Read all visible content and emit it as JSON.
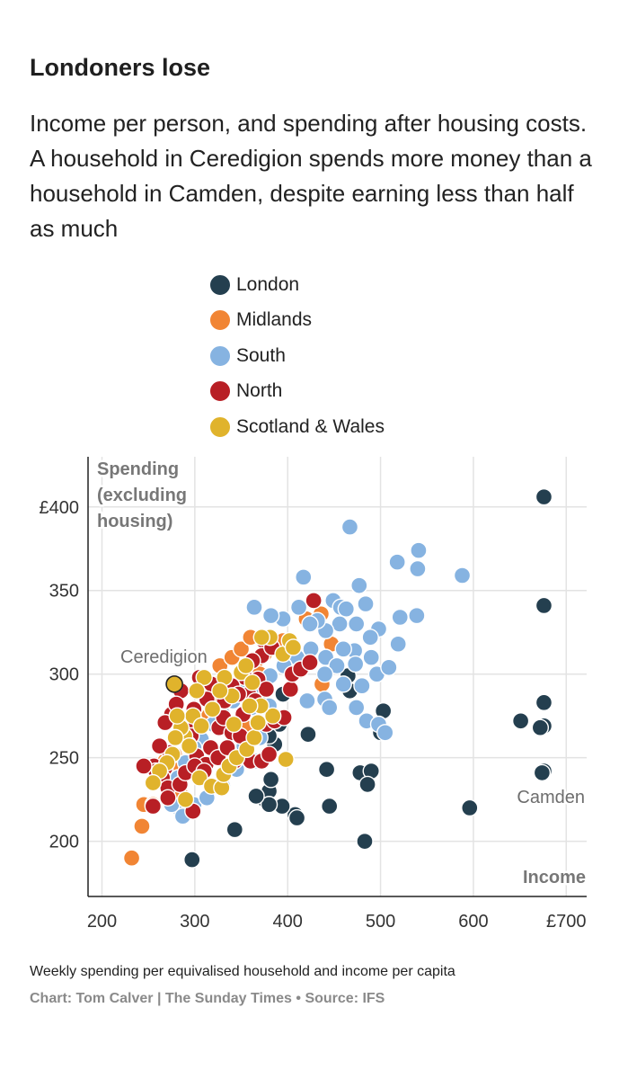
{
  "chart_data": {
    "type": "scatter",
    "title": "Londoners lose",
    "subtitle": "Income per person, and spending after housing costs. A household in Ceredigion spends more money than a household in Camden, despite earning less than half as much",
    "xlabel": "Income",
    "ylabel": "Spending (excluding housing)",
    "ylabel_lines": [
      "Spending",
      "(excluding",
      "housing)"
    ],
    "xlim": [
      185,
      722
    ],
    "ylim": [
      167,
      430
    ],
    "x_ticks": [
      200,
      300,
      400,
      500,
      600,
      700
    ],
    "x_tick_labels": [
      "200",
      "300",
      "400",
      "500",
      "600",
      "£700"
    ],
    "y_ticks": [
      200,
      250,
      300,
      350,
      400
    ],
    "y_tick_labels": [
      "200",
      "250",
      "300",
      "350",
      "£400"
    ],
    "grid": true,
    "legend_position": "top",
    "annotations": [
      {
        "label": "Ceredigion",
        "x": 278,
        "y": 294
      },
      {
        "label": "Camden",
        "x": 676,
        "y": 242
      }
    ],
    "series": [
      {
        "name": "London",
        "color": "#243f4f",
        "points": [
          [
            676,
            406
          ],
          [
            676,
            341
          ],
          [
            676,
            283
          ],
          [
            676,
            269
          ],
          [
            672,
            268
          ],
          [
            651,
            272
          ],
          [
            676,
            242
          ],
          [
            674,
            241
          ],
          [
            596,
            220
          ],
          [
            478,
            241
          ],
          [
            490,
            242
          ],
          [
            486,
            234
          ],
          [
            483,
            200
          ],
          [
            500,
            265
          ],
          [
            503,
            278
          ],
          [
            465,
            299
          ],
          [
            467,
            290
          ],
          [
            395,
            288
          ],
          [
            391,
            270
          ],
          [
            386,
            258
          ],
          [
            380,
            263
          ],
          [
            360,
            268
          ],
          [
            366,
            270
          ],
          [
            383,
            276
          ],
          [
            422,
            264
          ],
          [
            442,
            243
          ],
          [
            445,
            221
          ],
          [
            408,
            216
          ],
          [
            410,
            214
          ],
          [
            394,
            221
          ],
          [
            375,
            225
          ],
          [
            380,
            230
          ],
          [
            382,
            237
          ],
          [
            380,
            222
          ],
          [
            366,
            227
          ],
          [
            343,
            207
          ],
          [
            297,
            189
          ]
        ]
      },
      {
        "name": "Midlands",
        "color": "#f18534",
        "points": [
          [
            232,
            190
          ],
          [
            243,
            209
          ],
          [
            245,
            222
          ],
          [
            255,
            222
          ],
          [
            262,
            238
          ],
          [
            273,
            242
          ],
          [
            280,
            245
          ],
          [
            268,
            248
          ],
          [
            278,
            252
          ],
          [
            289,
            263
          ],
          [
            300,
            268
          ],
          [
            315,
            275
          ],
          [
            325,
            282
          ],
          [
            335,
            288
          ],
          [
            306,
            298
          ],
          [
            318,
            292
          ],
          [
            329,
            296
          ],
          [
            327,
            305
          ],
          [
            340,
            310
          ],
          [
            350,
            315
          ],
          [
            360,
            322
          ],
          [
            365,
            307
          ],
          [
            375,
            312
          ],
          [
            395,
            320
          ],
          [
            405,
            310
          ],
          [
            412,
            302
          ],
          [
            420,
            333
          ],
          [
            436,
            336
          ],
          [
            447,
            318
          ],
          [
            437,
            294
          ],
          [
            370,
            300
          ],
          [
            398,
            249
          ],
          [
            355,
            268
          ],
          [
            285,
            228
          ],
          [
            270,
            232
          ],
          [
            338,
            244
          ]
        ]
      },
      {
        "name": "South",
        "color": "#86b3e1",
        "points": [
          [
            467,
            388
          ],
          [
            541,
            374
          ],
          [
            540,
            363
          ],
          [
            518,
            367
          ],
          [
            588,
            359
          ],
          [
            417,
            358
          ],
          [
            477,
            353
          ],
          [
            449,
            344
          ],
          [
            457,
            340
          ],
          [
            463,
            339
          ],
          [
            484,
            342
          ],
          [
            498,
            327
          ],
          [
            521,
            334
          ],
          [
            539,
            335
          ],
          [
            519,
            318
          ],
          [
            489,
            322
          ],
          [
            472,
            314
          ],
          [
            474,
            330
          ],
          [
            456,
            330
          ],
          [
            441,
            326
          ],
          [
            432,
            332
          ],
          [
            424,
            330
          ],
          [
            412,
            340
          ],
          [
            395,
            333
          ],
          [
            382,
            335
          ],
          [
            364,
            340
          ],
          [
            410,
            310
          ],
          [
            425,
            315
          ],
          [
            441,
            310
          ],
          [
            453,
            305
          ],
          [
            460,
            315
          ],
          [
            473,
            306
          ],
          [
            490,
            310
          ],
          [
            496,
            300
          ],
          [
            509,
            304
          ],
          [
            480,
            293
          ],
          [
            474,
            280
          ],
          [
            485,
            272
          ],
          [
            498,
            270
          ],
          [
            505,
            265
          ],
          [
            460,
            294
          ],
          [
            440,
            285
          ],
          [
            440,
            300
          ],
          [
            445,
            280
          ],
          [
            421,
            284
          ],
          [
            404,
            300
          ],
          [
            396,
            305
          ],
          [
            381,
            299
          ],
          [
            370,
            288
          ],
          [
            361,
            280
          ],
          [
            350,
            292
          ],
          [
            341,
            284
          ],
          [
            330,
            276
          ],
          [
            320,
            270
          ],
          [
            307,
            261
          ],
          [
            299,
            256
          ],
          [
            290,
            247
          ],
          [
            282,
            238
          ],
          [
            280,
            221
          ],
          [
            287,
            215
          ],
          [
            275,
            222
          ],
          [
            299,
            222
          ],
          [
            313,
            226
          ],
          [
            330,
            233
          ],
          [
            345,
            243
          ],
          [
            353,
            257
          ],
          [
            365,
            248
          ],
          [
            370,
            262
          ],
          [
            380,
            281
          ]
        ]
      },
      {
        "name": "North",
        "color": "#b81f25",
        "points": [
          [
            428,
            344
          ],
          [
            374,
            320
          ],
          [
            372,
            311
          ],
          [
            383,
            316
          ],
          [
            362,
            308
          ],
          [
            368,
            297
          ],
          [
            377,
            291
          ],
          [
            354,
            298
          ],
          [
            358,
            288
          ],
          [
            340,
            293
          ],
          [
            347,
            288
          ],
          [
            332,
            284
          ],
          [
            318,
            294
          ],
          [
            305,
            298
          ],
          [
            313,
            285
          ],
          [
            299,
            279
          ],
          [
            301,
            271
          ],
          [
            290,
            268
          ],
          [
            296,
            263
          ],
          [
            282,
            262
          ],
          [
            273,
            253
          ],
          [
            262,
            257
          ],
          [
            256,
            245
          ],
          [
            268,
            244
          ],
          [
            265,
            238
          ],
          [
            271,
            232
          ],
          [
            258,
            242
          ],
          [
            245,
            245
          ],
          [
            255,
            221
          ],
          [
            271,
            226
          ],
          [
            284,
            234
          ],
          [
            290,
            241
          ],
          [
            302,
            251
          ],
          [
            312,
            246
          ],
          [
            317,
            256
          ],
          [
            326,
            268
          ],
          [
            331,
            274
          ],
          [
            340,
            265
          ],
          [
            352,
            276
          ],
          [
            365,
            284
          ],
          [
            377,
            270
          ],
          [
            386,
            272
          ],
          [
            396,
            274
          ],
          [
            403,
            291
          ],
          [
            405,
            300
          ],
          [
            414,
            303
          ],
          [
            424,
            307
          ],
          [
            298,
            218
          ],
          [
            293,
            258
          ],
          [
            300,
            245
          ],
          [
            310,
            242
          ],
          [
            325,
            250
          ],
          [
            335,
            256
          ],
          [
            343,
            248
          ],
          [
            349,
            263
          ],
          [
            360,
            248
          ],
          [
            372,
            248
          ],
          [
            380,
            252
          ],
          [
            285,
            290
          ],
          [
            275,
            276
          ],
          [
            268,
            271
          ],
          [
            280,
            282
          ]
        ]
      },
      {
        "name": "Scotland & Wales",
        "color": "#e0b32c",
        "points": [
          [
            278,
            294
          ],
          [
            398,
            249
          ],
          [
            395,
            312
          ],
          [
            402,
            320
          ],
          [
            406,
            316
          ],
          [
            381,
            322
          ],
          [
            372,
            322
          ],
          [
            350,
            301
          ],
          [
            355,
            305
          ],
          [
            362,
            295
          ],
          [
            340,
            287
          ],
          [
            332,
            298
          ],
          [
            310,
            298
          ],
          [
            302,
            290
          ],
          [
            298,
            275
          ],
          [
            289,
            263
          ],
          [
            285,
            268
          ],
          [
            281,
            275
          ],
          [
            279,
            262
          ],
          [
            276,
            252
          ],
          [
            270,
            247
          ],
          [
            262,
            242
          ],
          [
            255,
            235
          ],
          [
            294,
            257
          ],
          [
            307,
            269
          ],
          [
            319,
            279
          ],
          [
            327,
            290
          ],
          [
            290,
            225
          ],
          [
            305,
            238
          ],
          [
            318,
            233
          ],
          [
            329,
            232
          ],
          [
            331,
            240
          ],
          [
            337,
            245
          ],
          [
            345,
            250
          ],
          [
            356,
            255
          ],
          [
            364,
            262
          ],
          [
            368,
            271
          ],
          [
            384,
            275
          ],
          [
            371,
            281
          ],
          [
            359,
            281
          ],
          [
            342,
            270
          ]
        ]
      }
    ]
  },
  "footer": {
    "note": "Weekly spending per equivalised household and income per capita",
    "credit": "Chart: Tom Calver | The Sunday Times • Source: IFS"
  }
}
